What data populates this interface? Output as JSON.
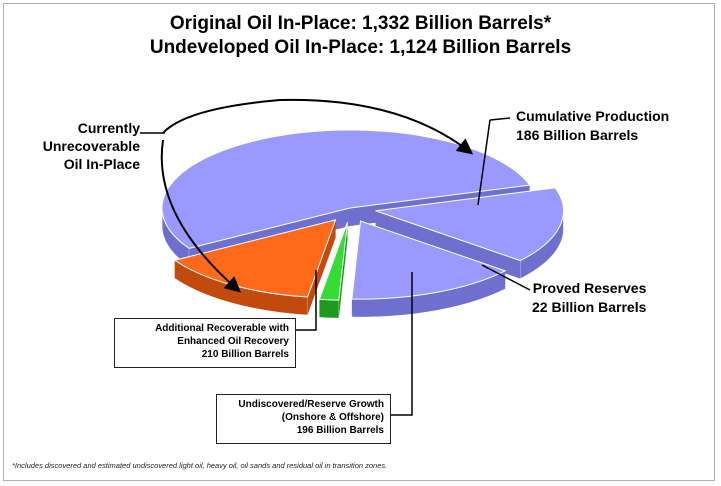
{
  "chart_data": {
    "type": "pie",
    "title": "Original Oil In-Place: 1,332 Billion Barrels*",
    "subtitle": "Undeveloped Oil In-Place: 1,124 Billion Barrels",
    "units": "Billion Barrels",
    "total": 1332,
    "slices": [
      {
        "name": "Currently Unrecoverable Oil In-Place",
        "value": 718,
        "color": "#9999ff",
        "side_color": "#6f6fcf",
        "exploded": false
      },
      {
        "name": "Cumulative Production",
        "value": 186,
        "color": "#ff6a1a",
        "side_color": "#c24a0c",
        "exploded": true
      },
      {
        "name": "Proved Reserves",
        "value": 22,
        "color": "#33dd33",
        "side_color": "#1e9a1e",
        "exploded": true
      },
      {
        "name": "Undiscovered/Reserve Growth (Onshore & Offshore)",
        "value": 196,
        "color": "#9999ff",
        "side_color": "#6f6fcf",
        "exploded": true
      },
      {
        "name": "Additional Recoverable with Enhanced Oil Recovery",
        "value": 210,
        "color": "#9999ff",
        "side_color": "#6f6fcf",
        "exploded": true
      }
    ],
    "labels": {
      "unrecoverable": [
        "Currently",
        "Unrecoverable",
        "Oil In-Place"
      ],
      "cumulative": [
        "Cumulative Production",
        "186 Billion Barrels"
      ],
      "proved": [
        "Proved Reserves",
        "22 Billion Barrels"
      ],
      "enhanced": [
        "Additional Recoverable with",
        "Enhanced Oil Recovery",
        "210 Billion Barrels"
      ],
      "undiscovered": [
        "Undiscovered/Reserve Growth",
        "(Onshore & Offshore)",
        "196 Billion Barrels"
      ]
    },
    "footnote": "*Includes discovered and estimated undiscovered light oil, heavy oil, oil sands and residual oil in transition zones."
  }
}
